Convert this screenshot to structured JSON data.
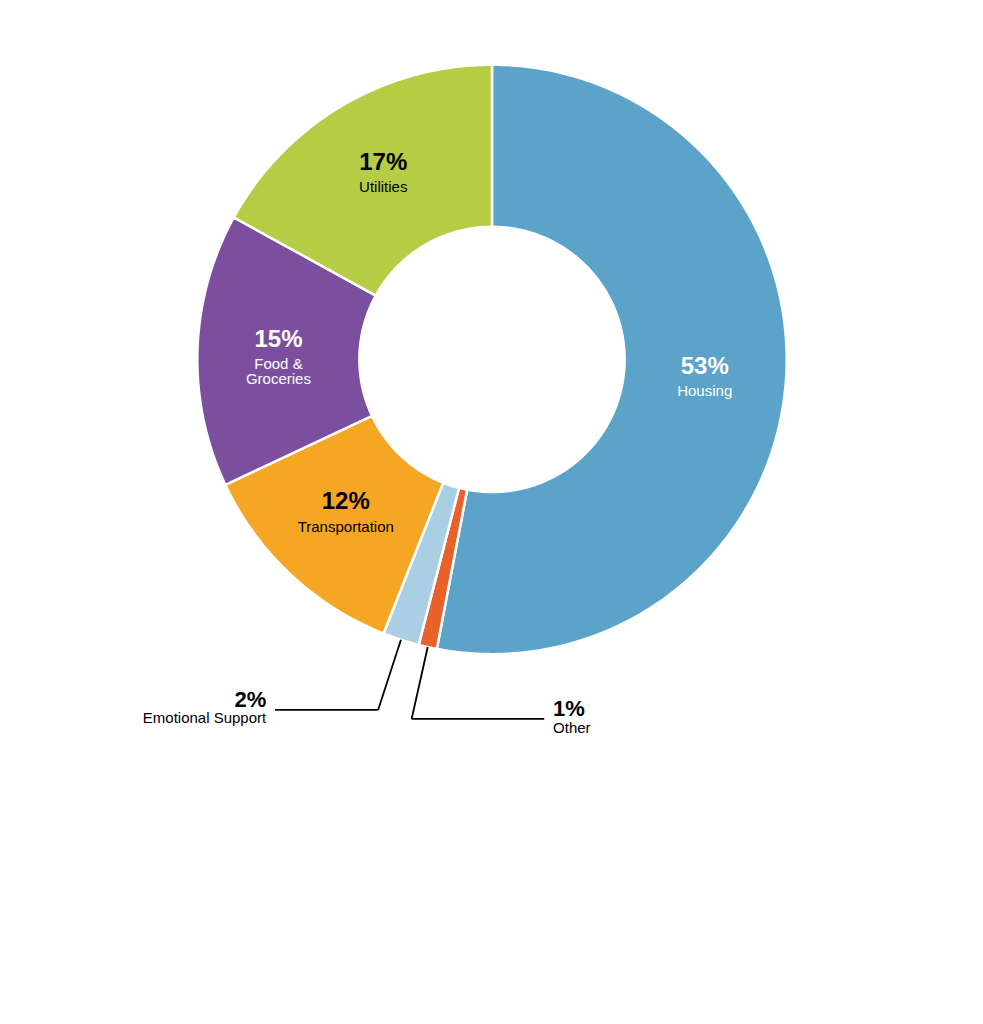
{
  "chart_data": {
    "type": "donut",
    "categories": [
      "Housing",
      "Other",
      "Emotional Support",
      "Transportation",
      "Food &\nGroceries",
      "Utilities"
    ],
    "values": [
      53,
      1,
      2,
      12,
      15,
      17
    ],
    "value_labels": [
      "53%",
      "1%",
      "2%",
      "12%",
      "15%",
      "17%"
    ],
    "colors": [
      "#5ba3c9",
      "#e8622a",
      "#aacfe4",
      "#f5a623",
      "#7b4f9e",
      "#b5cc44"
    ],
    "data_labels": true
  }
}
